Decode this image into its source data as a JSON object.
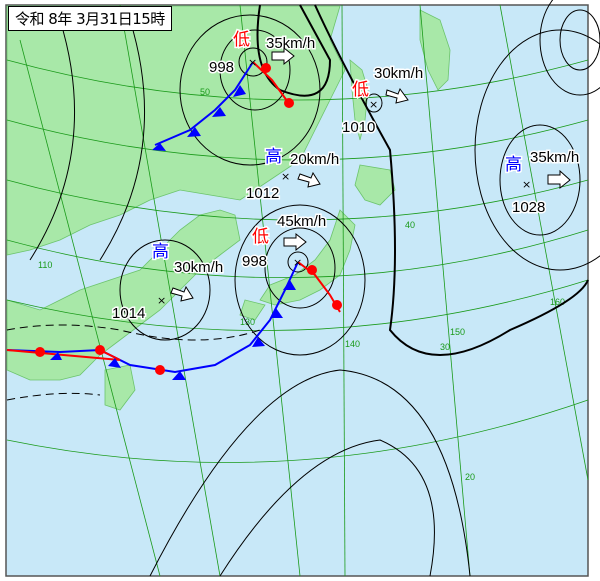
{
  "title": "令和 8年 3月31日15時",
  "colors": {
    "sea": "#c8e8f8",
    "land": "#a8e8a8",
    "grid": "#1a9a1a",
    "cold_front": "#0000ff",
    "warm_front": "#ff0000",
    "low": "#ff0000",
    "high": "#0000ff"
  },
  "systems": [
    {
      "type": "low",
      "symbol": "低",
      "pressure": "998",
      "speed": "35km/h"
    },
    {
      "type": "low",
      "symbol": "低",
      "pressure": "1010",
      "speed": "30km/h"
    },
    {
      "type": "high",
      "symbol": "高",
      "pressure": "1012",
      "speed": "20km/h"
    },
    {
      "type": "high",
      "symbol": "高",
      "pressure": "1028",
      "speed": "35km/h"
    },
    {
      "type": "low",
      "symbol": "低",
      "pressure": "998",
      "speed": "45km/h"
    },
    {
      "type": "high",
      "symbol": "高",
      "pressure": "1014",
      "speed": "30km/h"
    }
  ],
  "grid_labels": {
    "lat": [
      "50",
      "40",
      "30",
      "20"
    ],
    "lon": [
      "110",
      "130",
      "140",
      "150",
      "160"
    ]
  }
}
